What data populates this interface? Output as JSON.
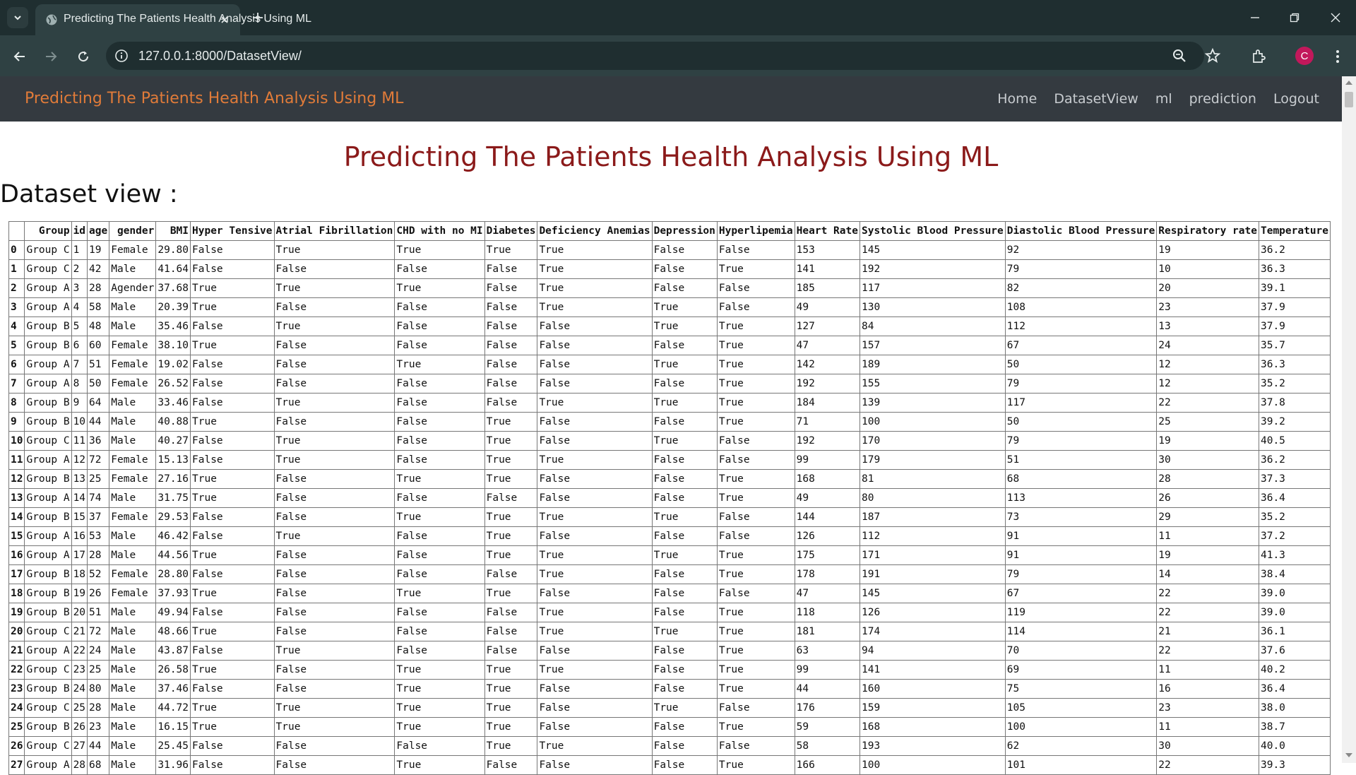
{
  "browser": {
    "tab_title": "Predicting The Patients Health Analysis Using ML",
    "url": "127.0.0.1:8000/DatasetView/",
    "profile_initial": "C"
  },
  "navbar": {
    "brand": "Predicting The Patients Health Analysis Using ML",
    "links": [
      "Home",
      "DatasetView",
      "ml",
      "prediction",
      "Logout"
    ]
  },
  "page": {
    "heading": "Predicting The Patients Health Analysis Using ML",
    "subheading": "Dataset view :"
  },
  "table": {
    "headers": [
      "",
      "Group",
      "id",
      "age",
      "gender",
      "BMI",
      "Hyper Tensive",
      "Atrial Fibrillation",
      "CHD with no MI",
      "Diabetes",
      "Deficiency Anemias",
      "Depression",
      "Hyperlipemia",
      "Heart Rate",
      "Systolic Blood Pressure",
      "Diastolic Blood Pressure",
      "Respiratory rate",
      "Temperature"
    ],
    "rows": [
      [
        "0",
        "Group C",
        "1",
        "19",
        "Female",
        "29.80",
        "False",
        "True",
        "True",
        "True",
        "True",
        "False",
        "False",
        "153",
        "145",
        "92",
        "19",
        "36.2"
      ],
      [
        "1",
        "Group C",
        "2",
        "42",
        "Male",
        "41.64",
        "False",
        "False",
        "False",
        "False",
        "True",
        "False",
        "True",
        "141",
        "192",
        "79",
        "10",
        "36.3"
      ],
      [
        "2",
        "Group A",
        "3",
        "28",
        "Agender",
        "37.68",
        "True",
        "True",
        "True",
        "False",
        "True",
        "False",
        "False",
        "185",
        "117",
        "82",
        "20",
        "39.1"
      ],
      [
        "3",
        "Group A",
        "4",
        "58",
        "Male",
        "20.39",
        "True",
        "False",
        "False",
        "False",
        "True",
        "True",
        "False",
        "49",
        "130",
        "108",
        "23",
        "37.9"
      ],
      [
        "4",
        "Group B",
        "5",
        "48",
        "Male",
        "35.46",
        "False",
        "True",
        "False",
        "False",
        "False",
        "True",
        "True",
        "127",
        "84",
        "112",
        "13",
        "37.9"
      ],
      [
        "5",
        "Group B",
        "6",
        "60",
        "Female",
        "38.10",
        "True",
        "False",
        "False",
        "False",
        "False",
        "False",
        "True",
        "47",
        "157",
        "67",
        "24",
        "35.7"
      ],
      [
        "6",
        "Group A",
        "7",
        "51",
        "Female",
        "19.02",
        "False",
        "False",
        "True",
        "False",
        "False",
        "True",
        "True",
        "142",
        "189",
        "50",
        "12",
        "36.3"
      ],
      [
        "7",
        "Group A",
        "8",
        "50",
        "Female",
        "26.52",
        "False",
        "False",
        "False",
        "False",
        "False",
        "False",
        "True",
        "192",
        "155",
        "79",
        "12",
        "35.2"
      ],
      [
        "8",
        "Group B",
        "9",
        "64",
        "Male",
        "33.46",
        "False",
        "True",
        "False",
        "False",
        "True",
        "True",
        "True",
        "184",
        "139",
        "117",
        "22",
        "37.8"
      ],
      [
        "9",
        "Group B",
        "10",
        "44",
        "Male",
        "40.88",
        "True",
        "False",
        "False",
        "True",
        "False",
        "False",
        "True",
        "71",
        "100",
        "50",
        "25",
        "39.2"
      ],
      [
        "10",
        "Group C",
        "11",
        "36",
        "Male",
        "40.27",
        "False",
        "True",
        "False",
        "True",
        "False",
        "True",
        "False",
        "192",
        "170",
        "79",
        "19",
        "40.5"
      ],
      [
        "11",
        "Group A",
        "12",
        "72",
        "Female",
        "15.13",
        "False",
        "True",
        "False",
        "True",
        "True",
        "False",
        "False",
        "99",
        "179",
        "51",
        "30",
        "36.2"
      ],
      [
        "12",
        "Group B",
        "13",
        "25",
        "Female",
        "27.16",
        "True",
        "False",
        "True",
        "True",
        "False",
        "False",
        "True",
        "168",
        "81",
        "68",
        "28",
        "37.3"
      ],
      [
        "13",
        "Group A",
        "14",
        "74",
        "Male",
        "31.75",
        "True",
        "False",
        "False",
        "False",
        "False",
        "False",
        "True",
        "49",
        "80",
        "113",
        "26",
        "36.4"
      ],
      [
        "14",
        "Group B",
        "15",
        "37",
        "Female",
        "29.53",
        "False",
        "False",
        "True",
        "True",
        "True",
        "True",
        "False",
        "144",
        "187",
        "73",
        "29",
        "35.2"
      ],
      [
        "15",
        "Group A",
        "16",
        "53",
        "Male",
        "46.42",
        "False",
        "True",
        "False",
        "True",
        "False",
        "False",
        "False",
        "126",
        "112",
        "91",
        "11",
        "37.2"
      ],
      [
        "16",
        "Group A",
        "17",
        "28",
        "Male",
        "44.56",
        "True",
        "False",
        "False",
        "True",
        "True",
        "True",
        "True",
        "175",
        "171",
        "91",
        "19",
        "41.3"
      ],
      [
        "17",
        "Group B",
        "18",
        "52",
        "Female",
        "28.80",
        "False",
        "False",
        "False",
        "False",
        "True",
        "False",
        "True",
        "178",
        "191",
        "79",
        "14",
        "38.4"
      ],
      [
        "18",
        "Group B",
        "19",
        "26",
        "Female",
        "37.93",
        "True",
        "False",
        "True",
        "True",
        "False",
        "False",
        "False",
        "47",
        "145",
        "67",
        "22",
        "39.0"
      ],
      [
        "19",
        "Group B",
        "20",
        "51",
        "Male",
        "49.94",
        "False",
        "False",
        "False",
        "False",
        "True",
        "False",
        "True",
        "118",
        "126",
        "119",
        "22",
        "39.0"
      ],
      [
        "20",
        "Group C",
        "21",
        "72",
        "Male",
        "48.66",
        "True",
        "False",
        "False",
        "False",
        "True",
        "True",
        "True",
        "181",
        "174",
        "114",
        "21",
        "36.1"
      ],
      [
        "21",
        "Group A",
        "22",
        "24",
        "Male",
        "43.87",
        "False",
        "True",
        "False",
        "False",
        "False",
        "False",
        "True",
        "63",
        "94",
        "70",
        "22",
        "37.6"
      ],
      [
        "22",
        "Group C",
        "23",
        "25",
        "Male",
        "26.58",
        "True",
        "False",
        "True",
        "True",
        "True",
        "False",
        "True",
        "99",
        "141",
        "69",
        "11",
        "40.2"
      ],
      [
        "23",
        "Group B",
        "24",
        "80",
        "Male",
        "37.46",
        "False",
        "False",
        "True",
        "True",
        "False",
        "False",
        "True",
        "44",
        "160",
        "75",
        "16",
        "36.4"
      ],
      [
        "24",
        "Group C",
        "25",
        "28",
        "Male",
        "44.72",
        "True",
        "True",
        "True",
        "True",
        "False",
        "True",
        "False",
        "176",
        "159",
        "105",
        "23",
        "38.0"
      ],
      [
        "25",
        "Group B",
        "26",
        "23",
        "Male",
        "16.15",
        "True",
        "True",
        "True",
        "True",
        "False",
        "False",
        "True",
        "59",
        "168",
        "100",
        "11",
        "38.7"
      ],
      [
        "26",
        "Group C",
        "27",
        "44",
        "Male",
        "25.45",
        "False",
        "False",
        "False",
        "True",
        "True",
        "False",
        "False",
        "58",
        "193",
        "62",
        "30",
        "40.0"
      ],
      [
        "27",
        "Group A",
        "28",
        "68",
        "Male",
        "31.96",
        "False",
        "False",
        "True",
        "False",
        "False",
        "False",
        "True",
        "166",
        "100",
        "101",
        "22",
        "39.3"
      ]
    ]
  }
}
